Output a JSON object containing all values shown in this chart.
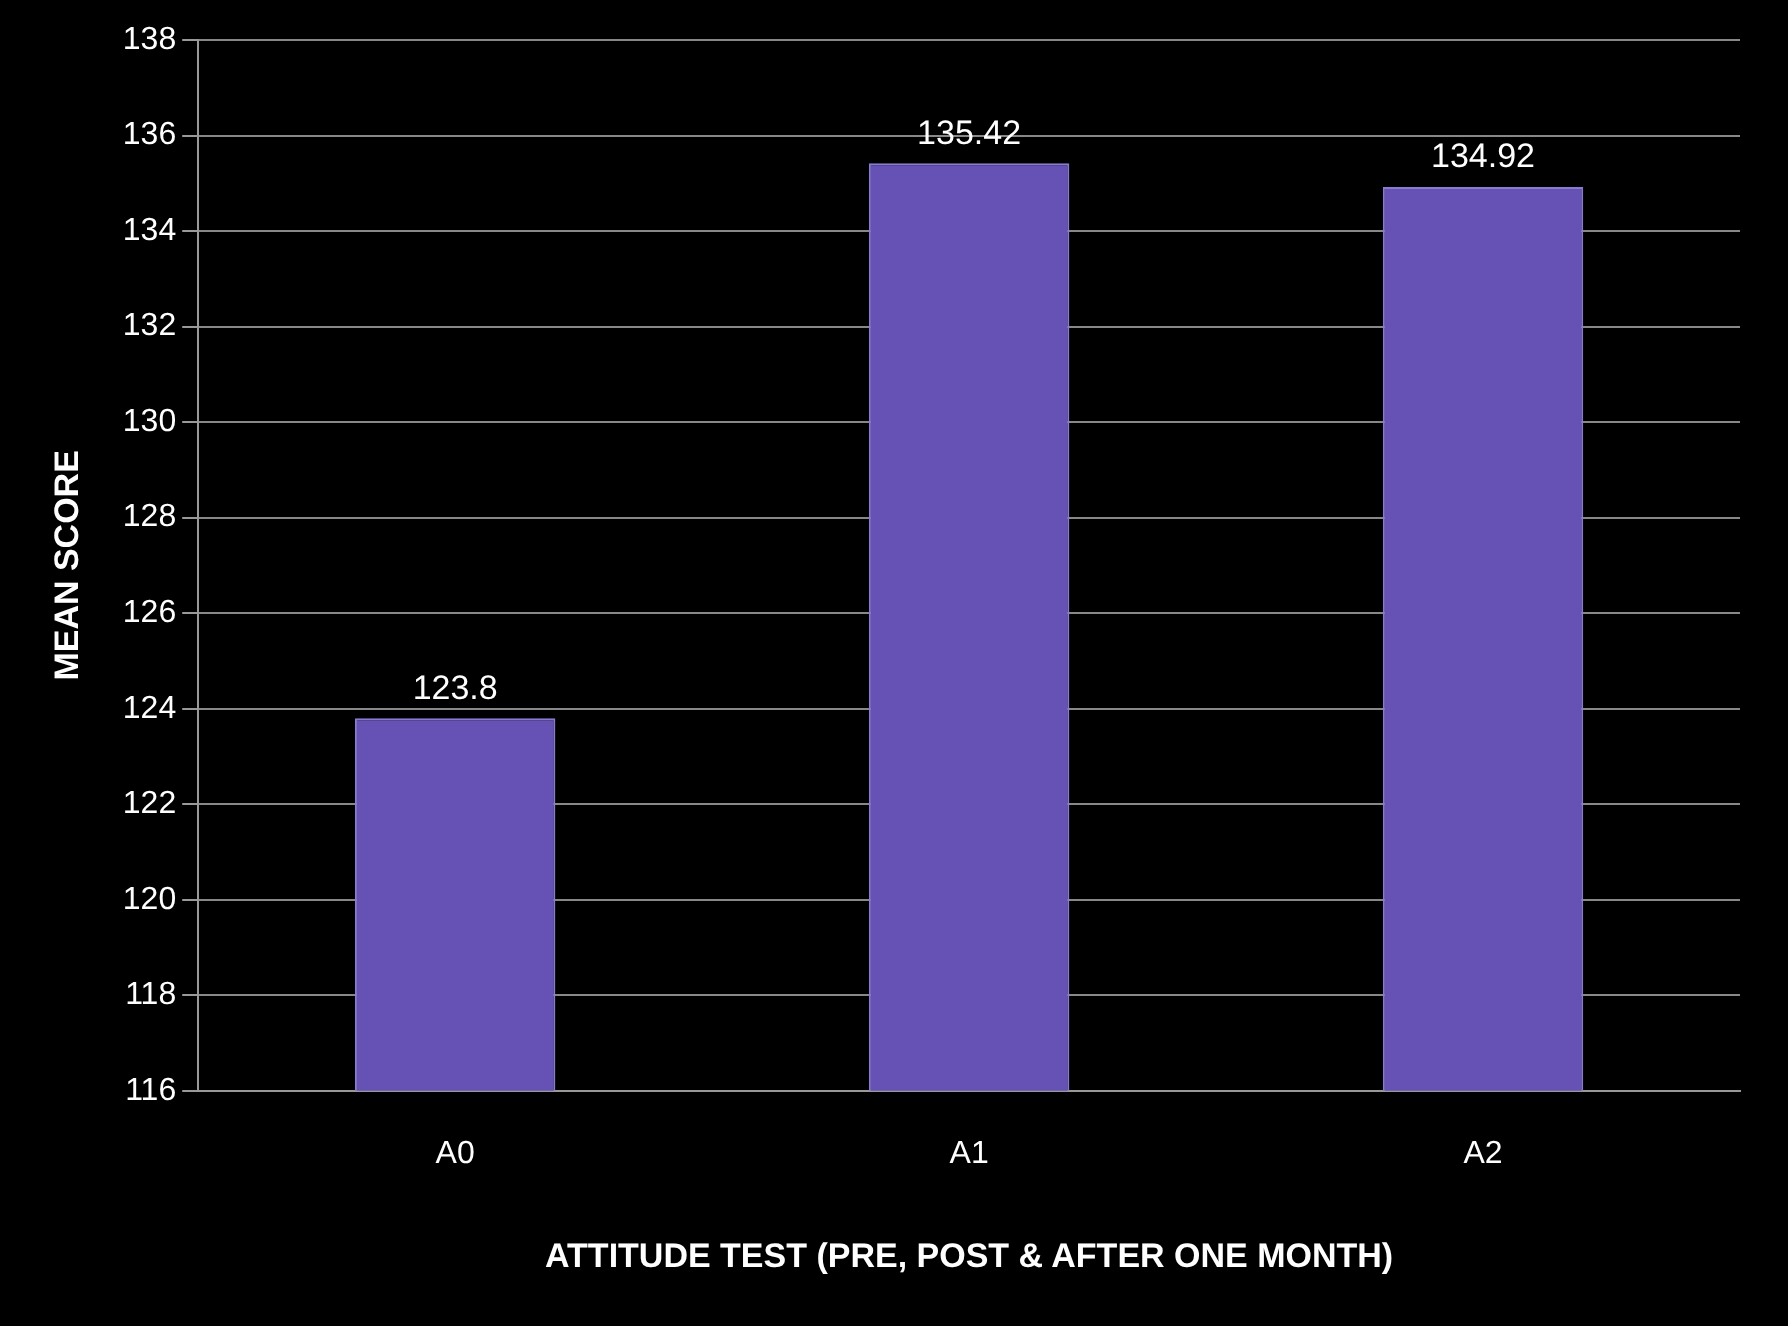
{
  "chart_data": {
    "type": "bar",
    "xlabel": "ATTITUDE TEST (PRE, POST & AFTER ONE MONTH)",
    "ylabel": "MEAN SCORE",
    "categories": [
      "A0",
      "A1",
      "A2"
    ],
    "values": [
      123.8,
      135.42,
      134.92
    ],
    "color": "#6652b4",
    "ylim": [
      116,
      138
    ],
    "yticks": [
      116,
      118,
      120,
      122,
      124,
      126,
      128,
      130,
      132,
      134,
      136,
      138
    ],
    "grid": "y",
    "data_labels": true
  }
}
